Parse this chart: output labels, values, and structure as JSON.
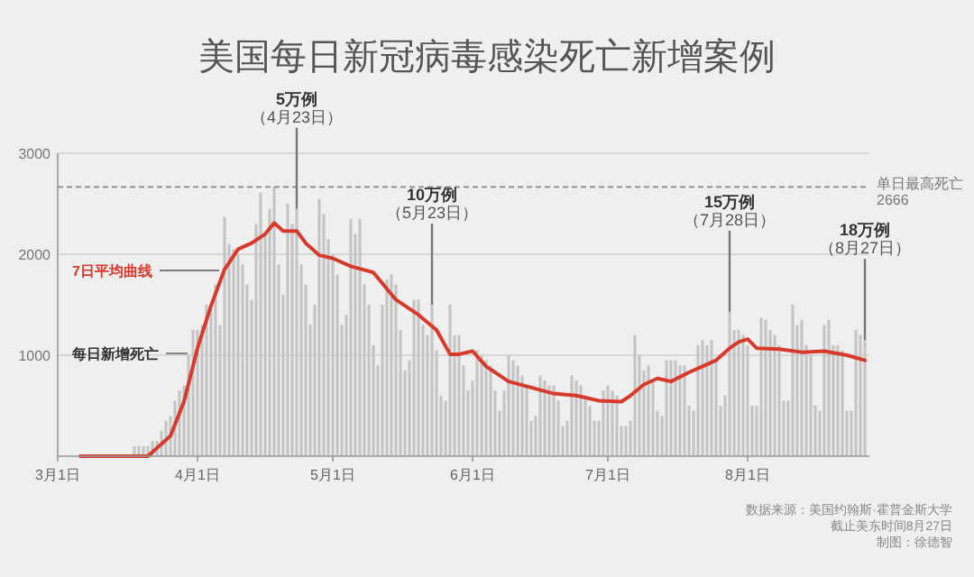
{
  "chart_data": {
    "type": "bar",
    "title": "美国每日新冠病毒感染死亡新增案例",
    "x": [
      "--03-01",
      "--03-02",
      "--03-03",
      "--03-04",
      "--03-05",
      "--03-06",
      "--03-07",
      "--03-08",
      "--03-09",
      "--03-10",
      "--03-11",
      "--03-12",
      "--03-13",
      "--03-14",
      "--03-15",
      "--03-16",
      "--03-17",
      "--03-18",
      "--03-19",
      "--03-20",
      "--03-21",
      "--03-22",
      "--03-23",
      "--03-24",
      "--03-25",
      "--03-26",
      "--03-27",
      "--03-28",
      "--03-29",
      "--03-30",
      "--03-31",
      "--04-01",
      "--04-02",
      "--04-03",
      "--04-04",
      "--04-05",
      "--04-06",
      "--04-07",
      "--04-08",
      "--04-09",
      "--04-10",
      "--04-11",
      "--04-12",
      "--04-13",
      "--04-14",
      "--04-15",
      "--04-16",
      "--04-17",
      "--04-18",
      "--04-19",
      "--04-20",
      "--04-21",
      "--04-22",
      "--04-23",
      "--04-24",
      "--04-25",
      "--04-26",
      "--04-27",
      "--04-28",
      "--04-29",
      "--04-30",
      "--05-01",
      "--05-02",
      "--05-03",
      "--05-04",
      "--05-05",
      "--05-06",
      "--05-07",
      "--05-08",
      "--05-09",
      "--05-10",
      "--05-11",
      "--05-12",
      "--05-13",
      "--05-14",
      "--05-15",
      "--05-16",
      "--05-17",
      "--05-18",
      "--05-19",
      "--05-20",
      "--05-21",
      "--05-22",
      "--05-23",
      "--05-24",
      "--05-25",
      "--05-26",
      "--05-27",
      "--05-28",
      "--05-29",
      "--05-30",
      "--05-31",
      "--06-01",
      "--06-02",
      "--06-03",
      "--06-04",
      "--06-05",
      "--06-06",
      "--06-07",
      "--06-08",
      "--06-09",
      "--06-10",
      "--06-11",
      "--06-12",
      "--06-13",
      "--06-14",
      "--06-15",
      "--06-16",
      "--06-17",
      "--06-18",
      "--06-19",
      "--06-20",
      "--06-21",
      "--06-22",
      "--06-23",
      "--06-24",
      "--06-25",
      "--06-26",
      "--06-27",
      "--06-28",
      "--06-29",
      "--06-30",
      "--07-01",
      "--07-02",
      "--07-03",
      "--07-04",
      "--07-05",
      "--07-06",
      "--07-07",
      "--07-08",
      "--07-09",
      "--07-10",
      "--07-11",
      "--07-12",
      "--07-13",
      "--07-14",
      "--07-15",
      "--07-16",
      "--07-17",
      "--07-18",
      "--07-19",
      "--07-20",
      "--07-21",
      "--07-22",
      "--07-23",
      "--07-24",
      "--07-25",
      "--07-26",
      "--07-27",
      "--07-28",
      "--07-29",
      "--07-30",
      "--07-31",
      "--08-01",
      "--08-02",
      "--08-03",
      "--08-04",
      "--08-05",
      "--08-06",
      "--08-07",
      "--08-08",
      "--08-09",
      "--08-10",
      "--08-11",
      "--08-12",
      "--08-13",
      "--08-14",
      "--08-15",
      "--08-16",
      "--08-17",
      "--08-18",
      "--08-19",
      "--08-20",
      "--08-21",
      "--08-22",
      "--08-23",
      "--08-24",
      "--08-25",
      "--08-26",
      "--08-27"
    ],
    "series": [
      {
        "name": "每日新增死亡",
        "color": "#c4c4c4",
        "values": [
          0,
          0,
          0,
          0,
          0,
          0,
          0,
          0,
          0,
          0,
          0,
          0,
          0,
          0,
          0,
          0,
          0,
          100,
          100,
          100,
          100,
          150,
          150,
          250,
          350,
          400,
          550,
          650,
          700,
          1000,
          1250,
          1250,
          1300,
          1500,
          1450,
          1700,
          1300,
          2370,
          2100,
          2050,
          2000,
          1900,
          1700,
          1550,
          2300,
          2610,
          2200,
          2450,
          2666,
          1900,
          1600,
          2500,
          2300,
          2450,
          1900,
          1700,
          1300,
          1500,
          2550,
          2400,
          2150,
          2000,
          1800,
          1300,
          1400,
          2350,
          2200,
          2350,
          1700,
          1500,
          1100,
          900,
          1500,
          1750,
          1800,
          1700,
          1250,
          850,
          950,
          1550,
          1550,
          1300,
          1200,
          1500,
          1050,
          600,
          550,
          1500,
          1200,
          1200,
          900,
          650,
          750,
          1050,
          1000,
          950,
          900,
          650,
          450,
          650,
          1000,
          950,
          900,
          800,
          700,
          350,
          400,
          800,
          750,
          700,
          700,
          550,
          300,
          350,
          800,
          750,
          700,
          600,
          500,
          350,
          350,
          650,
          700,
          650,
          600,
          300,
          300,
          350,
          1200,
          1000,
          850,
          900,
          750,
          450,
          400,
          950,
          950,
          950,
          900,
          900,
          500,
          450,
          1100,
          1150,
          1100,
          1150,
          950,
          500,
          600,
          1430,
          1250,
          1250,
          1200,
          1100,
          500,
          500,
          1370,
          1350,
          1250,
          1200,
          1100,
          550,
          550,
          1500,
          1300,
          1350,
          1100,
          1000,
          500,
          450,
          1300,
          1350,
          1100,
          1100,
          1050,
          450,
          450,
          1250,
          1200,
          1150
        ]
      },
      {
        "name": "7日平均曲线",
        "type": "line",
        "color": "#d7392b",
        "x": [
          "--03-06",
          "--03-11",
          "--03-16",
          "--03-21",
          "--03-26",
          "--03-29",
          "--04-01",
          "--04-04",
          "--04-07",
          "--04-10",
          "--04-13",
          "--04-16",
          "--04-18",
          "--04-20",
          "--04-23",
          "--04-25",
          "--04-28",
          "--05-01",
          "--05-05",
          "--05-10",
          "--05-15",
          "--05-20",
          "--05-24",
          "--05-27",
          "--05-29",
          "--06-01",
          "--06-04",
          "--06-09",
          "--06-14",
          "--06-19",
          "--06-24",
          "--06-29",
          "--07-04",
          "--07-06",
          "--07-09",
          "--07-12",
          "--07-15",
          "--07-19",
          "--07-22",
          "--07-25",
          "--07-28",
          "--07-30",
          "--08-01",
          "--08-03",
          "--08-08",
          "--08-13",
          "--08-18",
          "--08-23",
          "--08-27"
        ],
        "values": [
          0,
          0,
          0,
          0,
          200,
          540,
          1070,
          1490,
          1850,
          2050,
          2110,
          2200,
          2310,
          2230,
          2230,
          2110,
          1990,
          1960,
          1880,
          1820,
          1550,
          1400,
          1250,
          1010,
          1010,
          1040,
          890,
          740,
          680,
          620,
          600,
          550,
          540,
          600,
          710,
          770,
          740,
          830,
          890,
          950,
          1070,
          1130,
          1160,
          1070,
          1060,
          1030,
          1040,
          1000,
          950
        ]
      }
    ],
    "xlim": [
      "--03-01",
      "--08-28"
    ],
    "xticks": [
      {
        "value": "--03-01",
        "label": "3月1日"
      },
      {
        "value": "--04-01",
        "label": "4月1日"
      },
      {
        "value": "--05-01",
        "label": "5月1日"
      },
      {
        "value": "--06-01",
        "label": "6月1日"
      },
      {
        "value": "--07-01",
        "label": "7月1日"
      },
      {
        "value": "--08-01",
        "label": "8月1日"
      }
    ],
    "ylim": [
      0,
      3000
    ],
    "yticks": [
      1000,
      2000,
      3000
    ],
    "grid": "y",
    "legend": false,
    "ref_lines": [
      {
        "axis": "y",
        "value": 2666,
        "label": "单日最高死亡2666",
        "color": "#888888",
        "line_style": "dashed"
      }
    ],
    "annotations": [
      {
        "text": "5万例（4月23日）",
        "x": "--04-23",
        "y": 2450
      },
      {
        "text": "10万例（5月23日）",
        "x": "--05-23",
        "y": 1500
      },
      {
        "text": "15万例（7月28日）",
        "x": "--07-28",
        "y": 1430
      },
      {
        "text": "18万例（8月27日）",
        "x": "--08-27",
        "y": 1150
      },
      "数据来源：美国约翰斯·霍普金斯大学",
      "截止美东时间8月27日",
      "制图：徐德智"
    ]
  }
}
